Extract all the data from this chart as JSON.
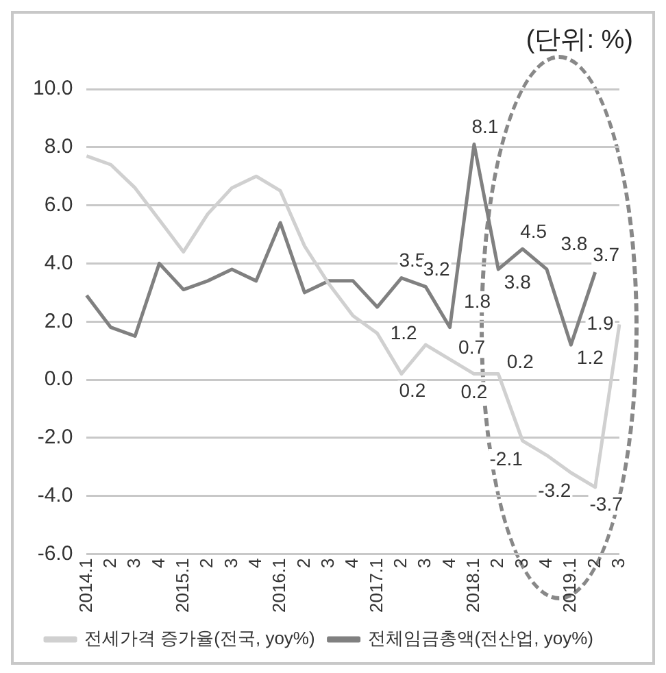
{
  "chart_data": {
    "type": "line",
    "annotations": [
      "(단위: %)"
    ],
    "categories": [
      "2014.1",
      "2",
      "3",
      "4",
      "2015.1",
      "2",
      "3",
      "4",
      "2016.1",
      "2",
      "3",
      "4",
      "2017.1",
      "2",
      "3",
      "4",
      "2018.1",
      "2",
      "3",
      "4",
      "2019.1",
      "2",
      "3"
    ],
    "series": [
      {
        "name": "전세가격 증가율(전국, yoy%)",
        "color": "#d0d0d0",
        "values": [
          7.7,
          7.4,
          6.6,
          5.5,
          4.4,
          5.7,
          6.6,
          7.0,
          6.5,
          4.6,
          3.3,
          2.2,
          1.6,
          0.2,
          1.2,
          0.7,
          0.2,
          0.2,
          -2.1,
          -2.6,
          -3.2,
          -3.7,
          1.9
        ],
        "value_labels": [
          null,
          null,
          null,
          null,
          null,
          null,
          null,
          null,
          null,
          null,
          null,
          null,
          null,
          "0.2",
          "1.2",
          "0.7",
          "0.2",
          "0.2",
          "-2.1",
          null,
          "-3.2",
          "-3.7",
          "1.9"
        ]
      },
      {
        "name": "전체임금총액(전산업, yoy%)",
        "color": "#808080",
        "values": [
          2.9,
          1.8,
          1.5,
          4.0,
          3.1,
          3.4,
          3.8,
          3.4,
          5.4,
          3.0,
          3.4,
          3.4,
          2.5,
          3.5,
          3.2,
          1.8,
          8.1,
          3.8,
          4.5,
          3.8,
          1.2,
          3.7,
          null
        ],
        "value_labels": [
          null,
          null,
          null,
          null,
          null,
          null,
          null,
          null,
          null,
          null,
          null,
          null,
          null,
          "3.5",
          "3.2",
          "1.8",
          "8.1",
          "3.8",
          "4.5",
          "3.8",
          "1.2",
          "3.7",
          null
        ]
      }
    ],
    "ylim": [
      -6,
      10
    ],
    "yticks": [
      {
        "value": -6,
        "label": "-6.0"
      },
      {
        "value": -4,
        "label": "-4.0"
      },
      {
        "value": -2,
        "label": "-2.0"
      },
      {
        "value": 0,
        "label": "0.0"
      },
      {
        "value": 2,
        "label": "2.0"
      },
      {
        "value": 4,
        "label": "4.0"
      },
      {
        "value": 6,
        "label": "6.0"
      },
      {
        "value": 8,
        "label": "8.0"
      },
      {
        "value": 10,
        "label": "10.0"
      }
    ],
    "grid": "y",
    "legend": "bottom",
    "marker": "none",
    "line_style": "solid"
  }
}
